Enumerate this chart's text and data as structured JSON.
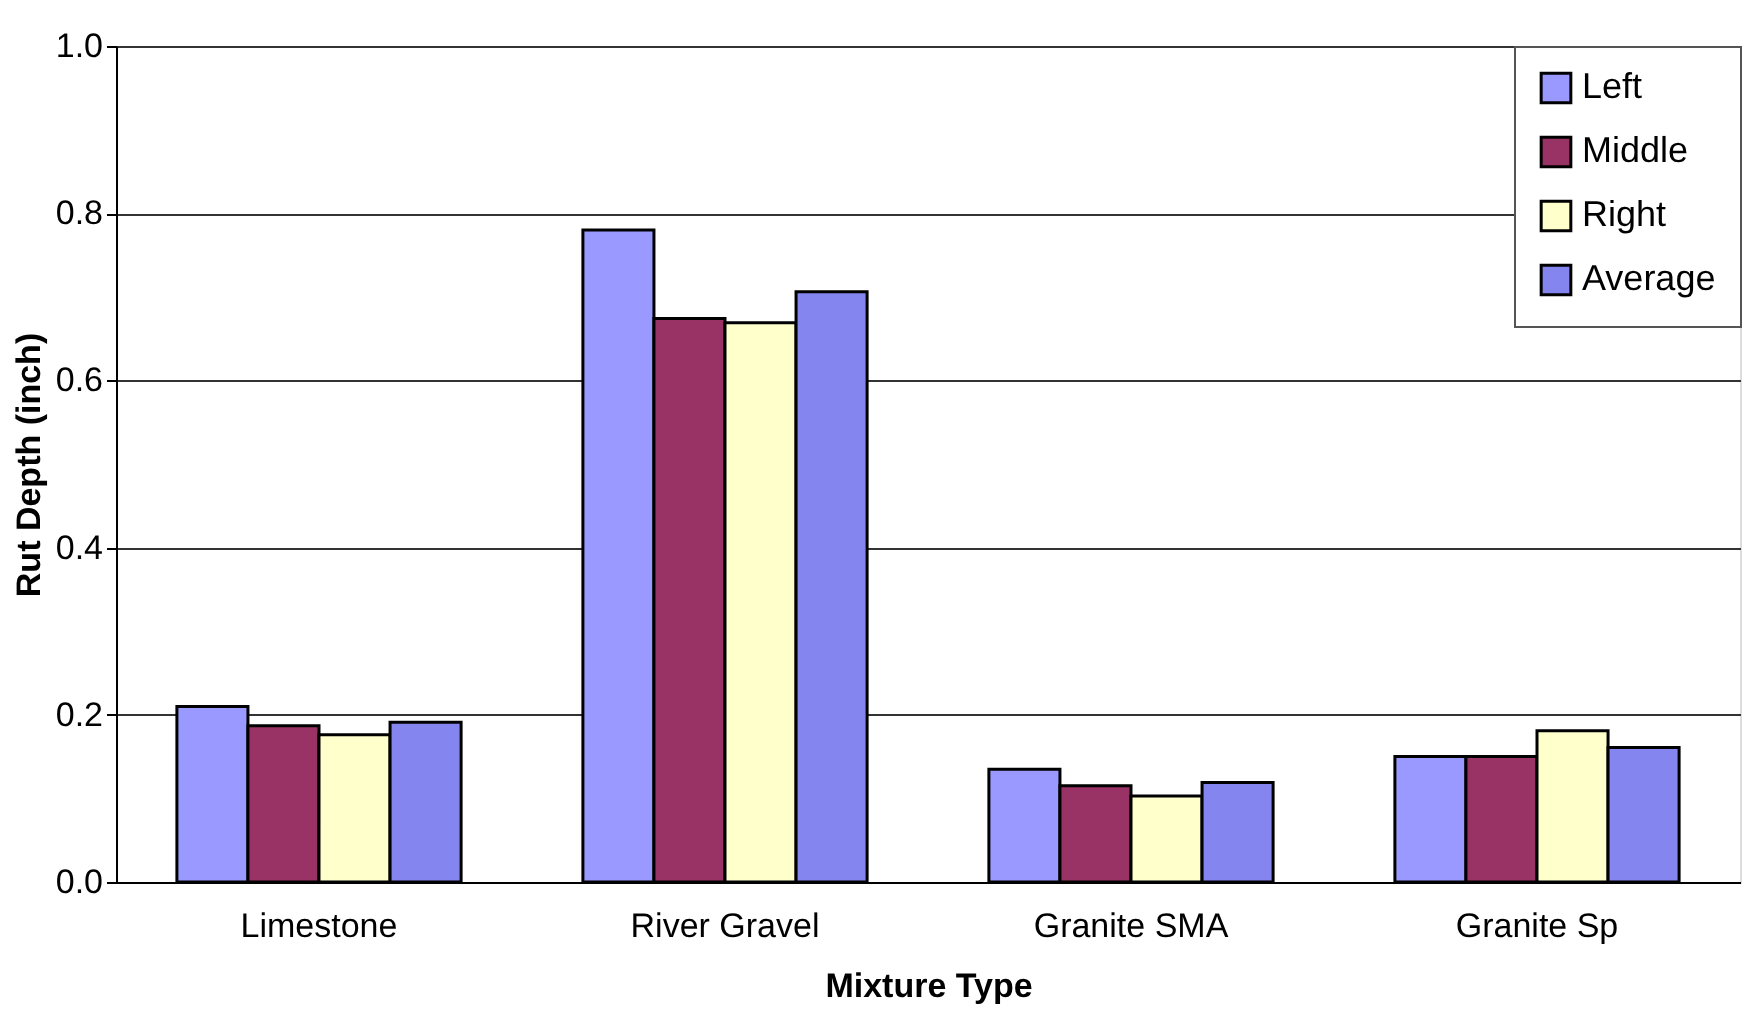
{
  "chart_data": {
    "type": "bar",
    "xlabel": "Mixture Type",
    "ylabel": "Rut Depth (inch)",
    "categories": [
      "Limestone",
      "River Gravel",
      "Granite SMA",
      "Granite Sp"
    ],
    "series": [
      {
        "name": "Left",
        "color": "#9999ff",
        "values": [
          0.21,
          0.78,
          0.135,
          0.15
        ]
      },
      {
        "name": "Middle",
        "color": "#993366",
        "values": [
          0.187,
          0.674,
          0.115,
          0.15
        ]
      },
      {
        "name": "Right",
        "color": "#ffffcc",
        "values": [
          0.176,
          0.669,
          0.103,
          0.181
        ]
      },
      {
        "name": "Average",
        "color": "#8585f0",
        "values": [
          0.191,
          0.706,
          0.119,
          0.161
        ]
      }
    ],
    "ylim": [
      0,
      1.0
    ],
    "yticks": [
      {
        "value": 0,
        "label": "0.0"
      },
      {
        "value": 0.2,
        "label": "0.2"
      },
      {
        "value": 0.4,
        "label": "0.4"
      },
      {
        "value": 0.6,
        "label": "0.6"
      },
      {
        "value": 0.8,
        "label": "0.8"
      },
      {
        "value": 1.0,
        "label": "1.0"
      }
    ],
    "grid": "y",
    "legend": "top right"
  }
}
